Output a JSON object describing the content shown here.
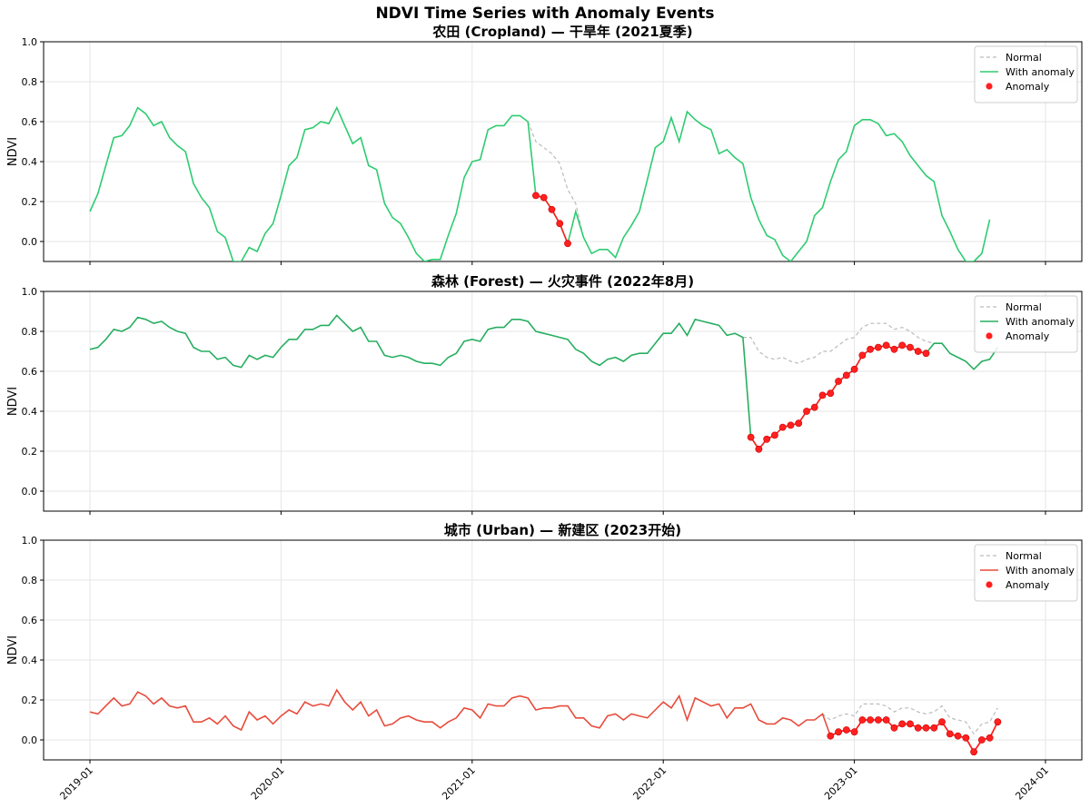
{
  "suptitle": "NDVI Time Series with Anomaly Events",
  "colors": {
    "cropland": "#2ecc71",
    "forest": "#27ae60",
    "urban": "#e74c3c",
    "normal": "#bbbbbb",
    "anomaly": "#ff2020",
    "grid": "#e6e6e6"
  },
  "legend": {
    "normal": "Normal",
    "with_anomaly": "With anomaly",
    "anomaly": "Anomaly",
    "placement": "top-right"
  },
  "chart_data": [
    {
      "type": "line",
      "title": "农田 (Cropland) — 干旱年 (2021夏季)",
      "ylabel": "NDVI",
      "ylim": [
        -0.1,
        1.0
      ],
      "yticks": [
        "0.0",
        "0.2",
        "0.4",
        "0.6",
        "0.8",
        "1.0"
      ],
      "xticks": [
        "2019-01",
        "2020-01",
        "2021-01",
        "2022-01",
        "2023-01",
        "2024-01"
      ],
      "x_start": "2019-01",
      "x_step": "half-month",
      "grid": true,
      "color_key": "cropland",
      "series": [
        {
          "name": "With anomaly",
          "values": [
            0.15,
            0.24,
            0.38,
            0.52,
            0.53,
            0.58,
            0.67,
            0.64,
            0.58,
            0.6,
            0.52,
            0.48,
            0.45,
            0.29,
            0.22,
            0.17,
            0.05,
            0.02,
            -0.1,
            -0.1,
            -0.03,
            -0.05,
            0.04,
            0.09,
            0.23,
            0.38,
            0.42,
            0.56,
            0.57,
            0.6,
            0.59,
            0.67,
            0.58,
            0.49,
            0.52,
            0.38,
            0.36,
            0.19,
            0.12,
            0.09,
            0.02,
            -0.06,
            -0.1,
            -0.09,
            -0.09,
            0.03,
            0.14,
            0.32,
            0.4,
            0.41,
            0.56,
            0.58,
            0.58,
            0.63,
            0.63,
            0.6,
            0.23,
            0.22,
            0.16,
            0.09,
            -0.01,
            0.15,
            0.02,
            -0.06,
            -0.04,
            -0.04,
            -0.08,
            0.02,
            0.08,
            0.15,
            0.31,
            0.47,
            0.5,
            0.62,
            0.5,
            0.65,
            0.61,
            0.58,
            0.56,
            0.44,
            0.46,
            0.42,
            0.39,
            0.22,
            0.11,
            0.03,
            0.01,
            -0.07,
            -0.1,
            -0.05,
            0.0,
            0.13,
            0.17,
            0.3,
            0.41,
            0.45,
            0.58,
            0.61,
            0.61,
            0.59,
            0.53,
            0.54,
            0.5,
            0.43,
            0.38,
            0.33,
            0.3,
            0.13,
            0.05,
            -0.04,
            -0.1,
            -0.1,
            -0.06,
            0.11
          ]
        },
        {
          "name": "Normal",
          "start_index": 55,
          "values": [
            0.6,
            0.5,
            0.47,
            0.44,
            0.39,
            0.26,
            0.19,
            0.02
          ]
        }
      ],
      "anomaly_indices": [
        56,
        57,
        58,
        59,
        60
      ]
    },
    {
      "type": "line",
      "title": "森林 (Forest) — 火灾事件 (2022年8月)",
      "ylabel": "NDVI",
      "ylim": [
        -0.1,
        1.0
      ],
      "yticks": [
        "0.0",
        "0.2",
        "0.4",
        "0.6",
        "0.8",
        "1.0"
      ],
      "xticks": [
        "2019-01",
        "2020-01",
        "2021-01",
        "2022-01",
        "2023-01",
        "2024-01"
      ],
      "x_start": "2019-01",
      "x_step": "half-month",
      "grid": true,
      "color_key": "forest",
      "series": [
        {
          "name": "With anomaly",
          "values": [
            0.71,
            0.72,
            0.76,
            0.81,
            0.8,
            0.82,
            0.87,
            0.86,
            0.84,
            0.85,
            0.82,
            0.8,
            0.79,
            0.72,
            0.7,
            0.7,
            0.66,
            0.67,
            0.63,
            0.62,
            0.68,
            0.66,
            0.68,
            0.67,
            0.72,
            0.76,
            0.76,
            0.81,
            0.81,
            0.83,
            0.83,
            0.88,
            0.84,
            0.8,
            0.82,
            0.75,
            0.75,
            0.68,
            0.67,
            0.68,
            0.67,
            0.65,
            0.64,
            0.64,
            0.63,
            0.67,
            0.69,
            0.75,
            0.76,
            0.75,
            0.81,
            0.82,
            0.82,
            0.86,
            0.86,
            0.85,
            0.8,
            0.79,
            0.78,
            0.77,
            0.76,
            0.71,
            0.69,
            0.65,
            0.63,
            0.66,
            0.67,
            0.65,
            0.68,
            0.69,
            0.69,
            0.74,
            0.79,
            0.79,
            0.84,
            0.78,
            0.86,
            0.85,
            0.84,
            0.83,
            0.78,
            0.79,
            0.77,
            0.27,
            0.21,
            0.26,
            0.28,
            0.32,
            0.33,
            0.34,
            0.4,
            0.42,
            0.48,
            0.49,
            0.55,
            0.58,
            0.61,
            0.68,
            0.71,
            0.72,
            0.73,
            0.71,
            0.73,
            0.72,
            0.7,
            0.69,
            0.74,
            0.74,
            0.69,
            0.67,
            0.65,
            0.61,
            0.65,
            0.66,
            0.72
          ]
        },
        {
          "name": "Normal",
          "start_index": 82,
          "values": [
            0.77,
            0.77,
            0.7,
            0.67,
            0.66,
            0.67,
            0.65,
            0.64,
            0.66,
            0.67,
            0.7,
            0.7,
            0.73,
            0.76,
            0.77,
            0.82,
            0.84,
            0.84,
            0.84,
            0.81,
            0.82,
            0.8,
            0.77,
            0.75,
            0.74
          ]
        }
      ],
      "anomaly_indices": [
        83,
        84,
        85,
        86,
        87,
        88,
        89,
        90,
        91,
        92,
        93,
        94,
        95,
        96,
        97,
        98,
        99,
        100,
        101,
        102,
        103,
        104,
        105
      ]
    },
    {
      "type": "line",
      "title": "城市 (Urban) — 新建区 (2023开始)",
      "ylabel": "NDVI",
      "ylim": [
        -0.1,
        1.0
      ],
      "yticks": [
        "0.0",
        "0.2",
        "0.4",
        "0.6",
        "0.8",
        "1.0"
      ],
      "xticks": [
        "2019-01",
        "2020-01",
        "2021-01",
        "2022-01",
        "2023-01",
        "2024-01"
      ],
      "x_start": "2019-01",
      "x_step": "half-month",
      "grid": true,
      "color_key": "urban",
      "series": [
        {
          "name": "With anomaly",
          "values": [
            0.14,
            0.13,
            0.17,
            0.21,
            0.17,
            0.18,
            0.24,
            0.22,
            0.18,
            0.21,
            0.17,
            0.16,
            0.17,
            0.09,
            0.09,
            0.11,
            0.08,
            0.12,
            0.07,
            0.05,
            0.14,
            0.1,
            0.12,
            0.08,
            0.12,
            0.15,
            0.13,
            0.19,
            0.17,
            0.18,
            0.17,
            0.25,
            0.19,
            0.15,
            0.19,
            0.12,
            0.15,
            0.07,
            0.08,
            0.11,
            0.12,
            0.1,
            0.09,
            0.09,
            0.06,
            0.09,
            0.11,
            0.16,
            0.15,
            0.11,
            0.18,
            0.17,
            0.17,
            0.21,
            0.22,
            0.21,
            0.15,
            0.16,
            0.16,
            0.17,
            0.17,
            0.11,
            0.11,
            0.07,
            0.06,
            0.12,
            0.13,
            0.1,
            0.13,
            0.12,
            0.11,
            0.15,
            0.19,
            0.16,
            0.22,
            0.1,
            0.21,
            0.19,
            0.17,
            0.18,
            0.11,
            0.16,
            0.16,
            0.18,
            0.1,
            0.08,
            0.08,
            0.11,
            0.1,
            0.07,
            0.1,
            0.1,
            0.13,
            0.02,
            0.04,
            0.05,
            0.04,
            0.1,
            0.1,
            0.1,
            0.1,
            0.06,
            0.08,
            0.08,
            0.06,
            0.06,
            0.06,
            0.09,
            0.03,
            0.02,
            0.01,
            -0.06,
            0.0,
            0.01,
            0.09
          ]
        },
        {
          "name": "Normal",
          "start_index": 92,
          "values": [
            0.13,
            0.1,
            0.12,
            0.13,
            0.12,
            0.18,
            0.18,
            0.18,
            0.17,
            0.14,
            0.16,
            0.16,
            0.14,
            0.13,
            0.14,
            0.17,
            0.11,
            0.1,
            0.09,
            0.03,
            0.08,
            0.09,
            0.16
          ]
        }
      ],
      "anomaly_indices": [
        93,
        94,
        95,
        96,
        97,
        98,
        99,
        100,
        101,
        102,
        103,
        104,
        105,
        106,
        107,
        108,
        109,
        110,
        111,
        112,
        113,
        114
      ]
    }
  ]
}
